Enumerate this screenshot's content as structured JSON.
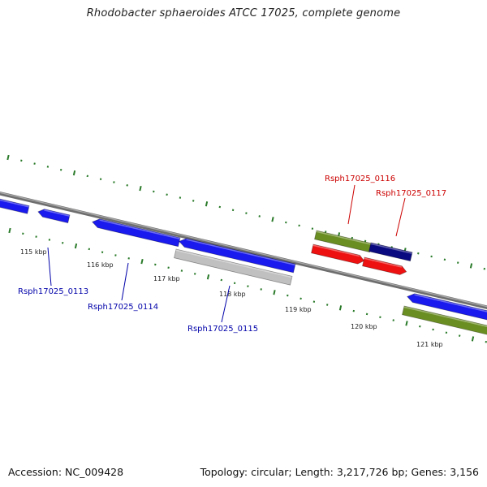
{
  "title": "Rhodobacter sphaeroides ATCC 17025, complete genome",
  "footer": {
    "accession": "Accession: NC_009428",
    "topology": "Topology: circular; Length: 3,217,726 bp; Genes: 3,156"
  },
  "colors": {
    "forward_strand_gene": "#1a1aee",
    "reverse_strand_gene": "#1a1aee",
    "selected_gene": "#0a0a80",
    "red_gene": "#ee1111",
    "rna_gene": "#6b8e23",
    "pseudo_gene": "#c0c0c0",
    "backbone": "#808080",
    "tick_marks": "#2a7a2a",
    "label_blue": "#0000aa",
    "label_red": "#cc0000"
  },
  "ticks": [
    {
      "label": "115 kbp"
    },
    {
      "label": "116 kbp"
    },
    {
      "label": "117 kbp"
    },
    {
      "label": "118 kbp"
    },
    {
      "label": "119 kbp"
    },
    {
      "label": "120 kbp"
    },
    {
      "label": "121 kbp"
    }
  ],
  "gene_labels": [
    {
      "text": "Rsph17025_0113",
      "color": "#0000aa"
    },
    {
      "text": "Rsph17025_0114",
      "color": "#0000aa"
    },
    {
      "text": "Rsph17025_0115",
      "color": "#0000aa"
    },
    {
      "text": "Rsph17025_0116",
      "color": "#cc0000"
    },
    {
      "text": "Rsph17025_0117",
      "color": "#cc0000"
    }
  ]
}
